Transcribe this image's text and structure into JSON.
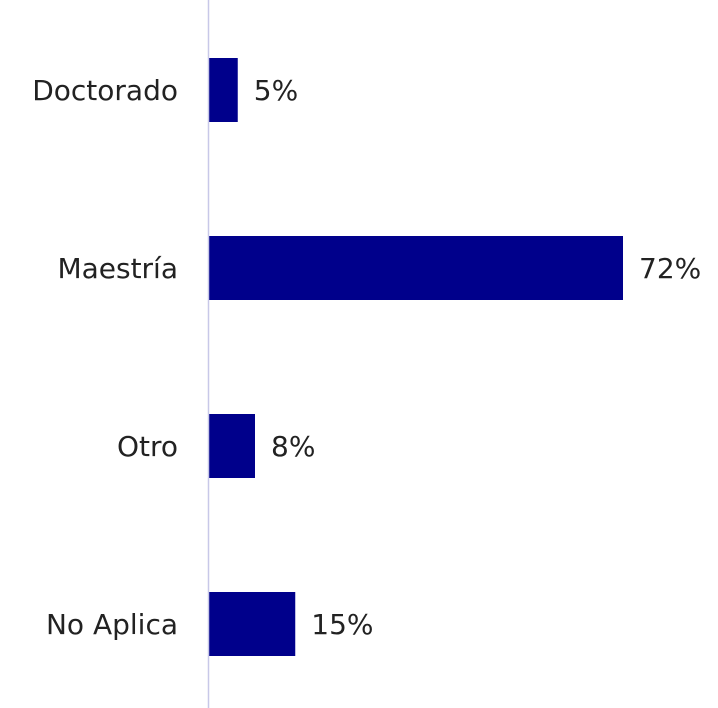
{
  "chart_data": {
    "type": "bar",
    "orientation": "horizontal",
    "categories": [
      "Doctorado",
      "Maestría",
      "Otro",
      "No Aplica"
    ],
    "values": [
      5,
      72,
      8,
      15
    ],
    "value_labels": [
      "5%",
      "72%",
      "8%",
      "15%"
    ],
    "unit": "%",
    "xlim": [
      0,
      100
    ],
    "title": "",
    "xlabel": "",
    "ylabel": "",
    "grid": false,
    "legend": "none",
    "colors": {
      "bar": "#00008B",
      "axis": "#c8c8e8",
      "text": "#222222"
    }
  }
}
